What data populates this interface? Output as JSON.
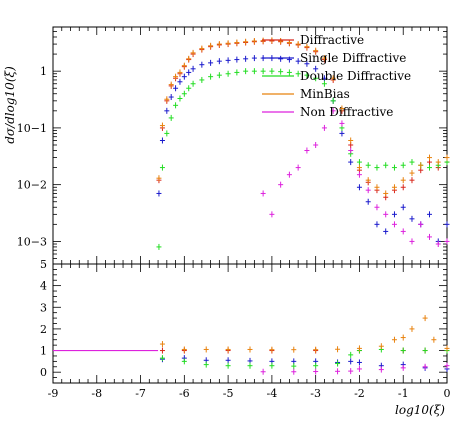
{
  "chart_data": [
    {
      "type": "scatter",
      "title": "",
      "xlabel": "log10(ξ)",
      "ylabel": "dσ/dlog10(ξ)",
      "xlim": [
        -9,
        0
      ],
      "ylim": [
        0.0004,
        6
      ],
      "yscale": "log",
      "grid": false,
      "legend_position": "top-right",
      "xticks": [
        "-9",
        "-8",
        "-7",
        "-6",
        "-5",
        "-4",
        "-3",
        "-2",
        "-1",
        "0"
      ],
      "yticks": [
        {
          "value": 0.001,
          "label": "10−3"
        },
        {
          "value": 0.01,
          "label": "10−2"
        },
        {
          "value": 0.1,
          "label": "10−1"
        },
        {
          "value": 1,
          "label": "1"
        }
      ],
      "series": [
        {
          "name": "Diffractive",
          "color": "#d8261c",
          "points": [
            [
              -6.58,
              0.012
            ],
            [
              -6.5,
              0.1
            ],
            [
              -6.4,
              0.3
            ],
            [
              -6.3,
              0.55
            ],
            [
              -6.2,
              0.75
            ],
            [
              -6.1,
              0.9
            ],
            [
              -6.0,
              1.2
            ],
            [
              -5.9,
              1.6
            ],
            [
              -5.8,
              2.0
            ],
            [
              -5.6,
              2.4
            ],
            [
              -5.4,
              2.7
            ],
            [
              -5.2,
              2.9
            ],
            [
              -5.0,
              3.0
            ],
            [
              -4.8,
              3.1
            ],
            [
              -4.6,
              3.2
            ],
            [
              -4.4,
              3.3
            ],
            [
              -4.2,
              3.35
            ],
            [
              -4.0,
              3.4
            ],
            [
              -3.8,
              3.3
            ],
            [
              -3.6,
              3.1
            ],
            [
              -3.4,
              2.9
            ],
            [
              -3.2,
              2.6
            ],
            [
              -3.0,
              2.2
            ],
            [
              -2.8,
              1.6
            ],
            [
              -2.6,
              0.7
            ],
            [
              -2.4,
              0.2
            ],
            [
              -2.2,
              0.05
            ],
            [
              -2.0,
              0.018
            ],
            [
              -1.8,
              0.011
            ],
            [
              -1.6,
              0.008
            ],
            [
              -1.4,
              0.006
            ],
            [
              -1.2,
              0.008
            ],
            [
              -1.0,
              0.009
            ],
            [
              -0.8,
              0.012
            ],
            [
              -0.6,
              0.018
            ],
            [
              -0.4,
              0.025
            ],
            [
              -0.2,
              0.02
            ],
            [
              0.0,
              0.025
            ]
          ]
        },
        {
          "name": "Single Diffractive",
          "color": "#1a1acc",
          "points": [
            [
              -6.58,
              0.007
            ],
            [
              -6.5,
              0.06
            ],
            [
              -6.4,
              0.2
            ],
            [
              -6.3,
              0.35
            ],
            [
              -6.2,
              0.5
            ],
            [
              -6.1,
              0.65
            ],
            [
              -6.0,
              0.8
            ],
            [
              -5.9,
              0.95
            ],
            [
              -5.8,
              1.1
            ],
            [
              -5.6,
              1.3
            ],
            [
              -5.4,
              1.4
            ],
            [
              -5.2,
              1.5
            ],
            [
              -5.0,
              1.55
            ],
            [
              -4.8,
              1.6
            ],
            [
              -4.6,
              1.65
            ],
            [
              -4.4,
              1.7
            ],
            [
              -4.2,
              1.7
            ],
            [
              -4.0,
              1.7
            ],
            [
              -3.8,
              1.65
            ],
            [
              -3.6,
              1.6
            ],
            [
              -3.4,
              1.5
            ],
            [
              -3.2,
              1.35
            ],
            [
              -3.0,
              1.1
            ],
            [
              -2.8,
              0.75
            ],
            [
              -2.6,
              0.3
            ],
            [
              -2.4,
              0.08
            ],
            [
              -2.2,
              0.025
            ],
            [
              -2.0,
              0.009
            ],
            [
              -1.8,
              0.005
            ],
            [
              -1.6,
              0.002
            ],
            [
              -1.4,
              0.0015
            ],
            [
              -1.2,
              0.003
            ],
            [
              -1.0,
              0.004
            ],
            [
              -0.8,
              0.0025
            ],
            [
              -0.6,
              0.002
            ],
            [
              -0.4,
              0.003
            ],
            [
              -0.2,
              0.001
            ],
            [
              0.0,
              0.002
            ]
          ]
        },
        {
          "name": "Double Diffractive",
          "color": "#22dd22",
          "points": [
            [
              -6.58,
              0.0008
            ],
            [
              -6.5,
              0.02
            ],
            [
              -6.4,
              0.08
            ],
            [
              -6.3,
              0.15
            ],
            [
              -6.2,
              0.25
            ],
            [
              -6.1,
              0.33
            ],
            [
              -6.0,
              0.4
            ],
            [
              -5.9,
              0.5
            ],
            [
              -5.8,
              0.6
            ],
            [
              -5.6,
              0.7
            ],
            [
              -5.4,
              0.8
            ],
            [
              -5.2,
              0.85
            ],
            [
              -5.0,
              0.9
            ],
            [
              -4.8,
              0.95
            ],
            [
              -4.6,
              1.0
            ],
            [
              -4.4,
              1.0
            ],
            [
              -4.2,
              1.0
            ],
            [
              -4.0,
              1.0
            ],
            [
              -3.8,
              0.98
            ],
            [
              -3.6,
              0.95
            ],
            [
              -3.4,
              0.9
            ],
            [
              -3.2,
              0.85
            ],
            [
              -3.0,
              0.75
            ],
            [
              -2.8,
              0.6
            ],
            [
              -2.6,
              0.3
            ],
            [
              -2.4,
              0.1
            ],
            [
              -2.2,
              0.035
            ],
            [
              -2.0,
              0.025
            ],
            [
              -1.8,
              0.022
            ],
            [
              -1.6,
              0.02
            ],
            [
              -1.4,
              0.022
            ],
            [
              -1.2,
              0.02
            ],
            [
              -1.0,
              0.022
            ],
            [
              -0.8,
              0.025
            ],
            [
              -0.6,
              0.022
            ],
            [
              -0.4,
              0.02
            ],
            [
              -0.2,
              0.022
            ],
            [
              0.0,
              0.025
            ]
          ]
        },
        {
          "name": "MinBias",
          "color": "#e8820e",
          "points": [
            [
              -6.58,
              0.013
            ],
            [
              -6.5,
              0.11
            ],
            [
              -6.4,
              0.32
            ],
            [
              -6.3,
              0.58
            ],
            [
              -6.2,
              0.8
            ],
            [
              -6.1,
              0.95
            ],
            [
              -6.0,
              1.25
            ],
            [
              -5.9,
              1.65
            ],
            [
              -5.8,
              2.1
            ],
            [
              -5.6,
              2.5
            ],
            [
              -5.4,
              2.8
            ],
            [
              -5.2,
              3.0
            ],
            [
              -5.0,
              3.1
            ],
            [
              -4.8,
              3.2
            ],
            [
              -4.6,
              3.3
            ],
            [
              -4.4,
              3.4
            ],
            [
              -4.2,
              3.45
            ],
            [
              -4.0,
              3.5
            ],
            [
              -3.8,
              3.4
            ],
            [
              -3.6,
              3.2
            ],
            [
              -3.4,
              3.0
            ],
            [
              -3.2,
              2.7
            ],
            [
              -3.0,
              2.3
            ],
            [
              -2.8,
              1.7
            ],
            [
              -2.6,
              0.75
            ],
            [
              -2.4,
              0.22
            ],
            [
              -2.2,
              0.06
            ],
            [
              -2.0,
              0.02
            ],
            [
              -1.8,
              0.012
            ],
            [
              -1.6,
              0.009
            ],
            [
              -1.4,
              0.007
            ],
            [
              -1.2,
              0.009
            ],
            [
              -1.0,
              0.012
            ],
            [
              -0.8,
              0.016
            ],
            [
              -0.6,
              0.022
            ],
            [
              -0.4,
              0.03
            ],
            [
              -0.2,
              0.025
            ],
            [
              0.0,
              0.03
            ]
          ]
        },
        {
          "name": "Non Diffractive",
          "color": "#dd22dd",
          "points": [
            [
              -4.2,
              0.007
            ],
            [
              -4.0,
              0.003
            ],
            [
              -3.8,
              0.01
            ],
            [
              -3.6,
              0.015
            ],
            [
              -3.4,
              0.02
            ],
            [
              -3.2,
              0.04
            ],
            [
              -3.0,
              0.05
            ],
            [
              -2.8,
              0.1
            ],
            [
              -2.6,
              0.2
            ],
            [
              -2.4,
              0.12
            ],
            [
              -2.2,
              0.04
            ],
            [
              -2.0,
              0.015
            ],
            [
              -1.8,
              0.008
            ],
            [
              -1.6,
              0.004
            ],
            [
              -1.4,
              0.003
            ],
            [
              -1.2,
              0.002
            ],
            [
              -1.0,
              0.0015
            ],
            [
              -0.8,
              0.001
            ],
            [
              -0.6,
              0.002
            ],
            [
              -0.4,
              0.0012
            ],
            [
              -0.2,
              0.0009
            ],
            [
              0.0,
              0.001
            ]
          ]
        }
      ]
    },
    {
      "type": "scatter",
      "title": "",
      "xlabel": "log10(ξ)",
      "ylabel": "",
      "xlim": [
        -9,
        0
      ],
      "ylim": [
        -0.5,
        5
      ],
      "grid": false,
      "xticks": [
        "-9",
        "-8",
        "-7",
        "-6",
        "-5",
        "-4",
        "-3",
        "-2",
        "-1",
        "0"
      ],
      "yticks": [
        "0",
        "1",
        "2",
        "3",
        "4",
        "5"
      ],
      "reference_line": 1,
      "series": [
        {
          "color": "#d8261c",
          "points": [
            [
              -6.5,
              1.0
            ],
            [
              -6.0,
              1.0
            ],
            [
              -5.0,
              1.0
            ],
            [
              -4.0,
              1.0
            ],
            [
              -3.0,
              1.0
            ],
            [
              -2.0,
              1.0
            ],
            [
              -1.0,
              1.0
            ],
            [
              -0.5,
              1.0
            ],
            [
              0.0,
              1.0
            ]
          ]
        },
        {
          "color": "#1a1acc",
          "points": [
            [
              -6.5,
              0.6
            ],
            [
              -6.0,
              0.65
            ],
            [
              -5.5,
              0.55
            ],
            [
              -5.0,
              0.55
            ],
            [
              -4.5,
              0.52
            ],
            [
              -4.0,
              0.5
            ],
            [
              -3.5,
              0.5
            ],
            [
              -3.0,
              0.5
            ],
            [
              -2.5,
              0.45
            ],
            [
              -2.2,
              0.5
            ],
            [
              -2.0,
              0.45
            ],
            [
              -1.5,
              0.3
            ],
            [
              -1.0,
              0.35
            ],
            [
              -0.5,
              0.2
            ],
            [
              0.0,
              0.15
            ]
          ]
        },
        {
          "color": "#22dd22",
          "points": [
            [
              -6.5,
              0.65
            ],
            [
              -6.0,
              0.5
            ],
            [
              -5.5,
              0.35
            ],
            [
              -5.0,
              0.3
            ],
            [
              -4.5,
              0.3
            ],
            [
              -4.0,
              0.3
            ],
            [
              -3.5,
              0.28
            ],
            [
              -3.0,
              0.3
            ],
            [
              -2.5,
              0.4
            ],
            [
              -2.2,
              0.8
            ],
            [
              -2.0,
              1.0
            ],
            [
              -1.5,
              1.05
            ],
            [
              -1.0,
              1.0
            ],
            [
              -0.5,
              1.0
            ],
            [
              0.0,
              1.0
            ]
          ]
        },
        {
          "color": "#e8820e",
          "points": [
            [
              -6.5,
              1.3
            ],
            [
              -6.0,
              1.05
            ],
            [
              -5.5,
              1.05
            ],
            [
              -5.0,
              1.05
            ],
            [
              -4.5,
              1.05
            ],
            [
              -4.0,
              1.04
            ],
            [
              -3.5,
              1.04
            ],
            [
              -3.0,
              1.04
            ],
            [
              -2.5,
              1.06
            ],
            [
              -2.0,
              1.1
            ],
            [
              -1.5,
              1.2
            ],
            [
              -1.2,
              1.5
            ],
            [
              -1.0,
              1.6
            ],
            [
              -0.8,
              2.0
            ],
            [
              -0.5,
              2.5
            ],
            [
              -0.3,
              1.5
            ],
            [
              0.0,
              1.1
            ]
          ]
        },
        {
          "color": "#dd22dd",
          "points": [
            [
              -4.2,
              0.02
            ],
            [
              -3.5,
              0.02
            ],
            [
              -3.0,
              0.03
            ],
            [
              -2.5,
              0.04
            ],
            [
              -2.2,
              0.05
            ],
            [
              -2.0,
              0.15
            ],
            [
              -1.5,
              0.12
            ],
            [
              -1.0,
              0.2
            ],
            [
              -0.5,
              0.25
            ],
            [
              0.0,
              0.3
            ]
          ]
        }
      ]
    }
  ]
}
